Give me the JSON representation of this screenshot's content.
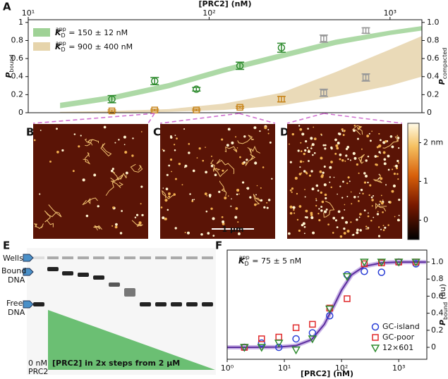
{
  "chart_data": [
    {
      "type": "band_points",
      "panel": "A",
      "xlabel": "[PRC2] (nM)",
      "log_x": true,
      "xlim": [
        10,
        1500
      ],
      "xticks": [
        {
          "value": 10,
          "label": "10¹"
        },
        {
          "value": 100,
          "label": "10²"
        },
        {
          "value": 1000,
          "label": "10³"
        }
      ],
      "ylim": [
        0,
        1.03
      ],
      "yticks": [
        0,
        0.2,
        0.4,
        0.6,
        0.8,
        1
      ],
      "y2lim": [
        0,
        1.03
      ],
      "y2ticks": [
        0,
        0.2,
        0.4,
        0.6,
        0.8,
        {
          "value": 1,
          "label": "1.0"
        }
      ],
      "ylabel": {
        "symbol": "P",
        "sub": "bound",
        "color": "#2e8b2e"
      },
      "y2label": {
        "symbol": "P",
        "sub": "compacted",
        "color": "#b07a1e"
      },
      "series": [
        {
          "name": {
            "symbol": "K",
            "sub": "D",
            "sup": "app",
            "text": " = 150 ± 12 nM"
          },
          "color": "#9fd296",
          "text_color": "#2e8b2e",
          "axis": "y",
          "x": [
            15,
            30,
            60,
            120,
            250,
            500,
            1000,
            1500
          ],
          "lower": [
            0.05,
            0.14,
            0.27,
            0.44,
            0.6,
            0.75,
            0.86,
            0.91
          ],
          "upper": [
            0.11,
            0.2,
            0.33,
            0.5,
            0.66,
            0.81,
            0.91,
            0.96
          ]
        },
        {
          "name": {
            "symbol": "K",
            "sub": "D",
            "sup": "app",
            "text": " = 900 ± 400 nM"
          },
          "color": "#e6d4ab",
          "text_color": "#b07a1e",
          "axis": "y2",
          "x": [
            15,
            30,
            60,
            120,
            250,
            500,
            1000,
            1500
          ],
          "lower": [
            0,
            0,
            0.01,
            0.03,
            0.08,
            0.18,
            0.3,
            0.4
          ],
          "upper": [
            0.01,
            0.02,
            0.04,
            0.1,
            0.22,
            0.45,
            0.7,
            0.85
          ]
        }
      ],
      "points": [
        {
          "color": "#2e8b2e",
          "marker": "circle",
          "axis": "y",
          "x": [
            29,
            50,
            85,
            148,
            251
          ],
          "values": [
            0.15,
            0.35,
            0.26,
            0.52,
            0.72
          ],
          "errors": [
            0.04,
            0.04,
            0.02,
            0.04,
            0.05
          ]
        },
        {
          "color": "#999999",
          "marker": "square",
          "axis": "y",
          "x": [
            430,
            735
          ],
          "values": [
            0.82,
            0.91
          ],
          "errors": [
            0.04,
            0.03
          ]
        },
        {
          "color": "#c8861e",
          "marker": "square",
          "axis": "y2",
          "x": [
            29,
            50,
            85,
            148,
            251
          ],
          "values": [
            0.02,
            0.03,
            0.03,
            0.06,
            0.15
          ],
          "errors": [
            0.01,
            0.01,
            0.01,
            0.01,
            0.03
          ]
        },
        {
          "color": "#999999",
          "marker": "square",
          "axis": "y2",
          "x": [
            430,
            735
          ],
          "values": [
            0.22,
            0.39
          ],
          "errors": [
            0.04,
            0.04
          ]
        }
      ]
    },
    {
      "type": "scatter_fit",
      "panel": "F",
      "xlabel": "[PRC2] (nM)",
      "log_x": true,
      "xlim": [
        1,
        3100
      ],
      "xticks": [
        {
          "value": 1,
          "label": "10⁰"
        },
        {
          "value": 10,
          "label": "10¹"
        },
        {
          "value": 100,
          "label": "10²"
        },
        {
          "value": 1000,
          "label": "10³"
        }
      ],
      "ylim": [
        -0.14,
        1.14
      ],
      "yticks": [
        0,
        0.2,
        0.4,
        0.6,
        0.8,
        {
          "value": 1,
          "label": "1.0"
        }
      ],
      "ylabel": {
        "symbol": "P",
        "sub": "bound",
        "text": " (au)"
      },
      "annotation": {
        "symbol": "K",
        "sub": "D",
        "sup": "app",
        "text": " = 75 ± 5 nM",
        "color": "#2e8b2e"
      },
      "x": [
        2,
        4,
        8,
        16,
        31,
        62,
        125,
        250,
        500,
        1000,
        2000
      ],
      "series": [
        {
          "name": "GC-island",
          "color": "#2b3fd6",
          "marker": "circle",
          "values": [
            0,
            0.05,
            0,
            0.1,
            0.17,
            0.37,
            0.85,
            0.89,
            0.88,
            1.0,
            0.98
          ]
        },
        {
          "name": "GC-poor",
          "color": "#e0282a",
          "marker": "square",
          "values": [
            0,
            0.1,
            0.12,
            0.23,
            0.27,
            0.46,
            0.57,
            0.98,
            0.99,
            1.0,
            1.0
          ]
        },
        {
          "name": "12×601",
          "color": "#2e8b2e",
          "marker": "triangle",
          "values": [
            0,
            0,
            0.05,
            -0.03,
            0.1,
            0.45,
            0.83,
            1.0,
            1.0,
            1.0,
            1.0
          ]
        }
      ],
      "fit": {
        "color": "#5b2d9e",
        "x": [
          1,
          2,
          4,
          8,
          16,
          30,
          50,
          75,
          100,
          150,
          250,
          500,
          1000,
          3000
        ],
        "values": [
          0,
          0,
          0.001,
          0.004,
          0.02,
          0.09,
          0.27,
          0.5,
          0.67,
          0.85,
          0.95,
          0.99,
          1.0,
          1.0
        ]
      }
    }
  ],
  "afm": {
    "letters": [
      "B",
      "C",
      "D"
    ],
    "scale_bar": "1 µm",
    "colorbar": {
      "ylim": [
        -0.5,
        2.5
      ],
      "ticks": [
        0,
        1,
        {
          "value": 2,
          "label": "2 nm"
        }
      ]
    }
  },
  "gel": {
    "letter": "E",
    "wells": "Wells",
    "bound": [
      "Bound",
      "DNA"
    ],
    "free": [
      "Free",
      "DNA"
    ],
    "control": [
      "0 nM",
      "PRC2"
    ],
    "gradient": "[PRC2] in 2x steps from 2 µM"
  }
}
